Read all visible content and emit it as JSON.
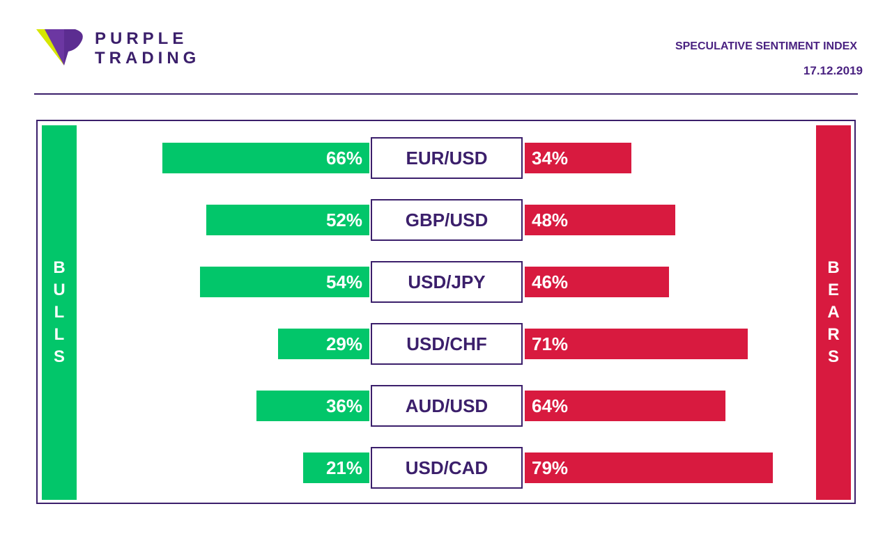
{
  "brand": {
    "line1": "PURPLE",
    "line2": "TRADING"
  },
  "header": {
    "title": "SPECULATIVE SENTIMENT INDEX",
    "date": "17.12.2019"
  },
  "colors": {
    "bulls": "#02c66a",
    "bears": "#d81a3f",
    "purple": "#3b1f6b",
    "accent_purple": "#4a2281",
    "logo_lime": "#d6e600"
  },
  "icons": {
    "logo": "purple-trading-logo-icon"
  },
  "sides": {
    "bulls": "BULLS",
    "bears": "BEARS"
  },
  "chart_data": {
    "type": "bar",
    "categories": [
      "EUR/USD",
      "GBP/USD",
      "USD/JPY",
      "USD/CHF",
      "AUD/USD",
      "USD/CAD"
    ],
    "series": [
      {
        "name": "BULLS",
        "values": [
          66,
          52,
          54,
          29,
          36,
          21
        ],
        "labels": [
          "66%",
          "52%",
          "54%",
          "29%",
          "36%",
          "21%"
        ]
      },
      {
        "name": "BEARS",
        "values": [
          34,
          48,
          46,
          71,
          64,
          79
        ],
        "labels": [
          "34%",
          "48%",
          "46%",
          "71%",
          "64%",
          "79%"
        ]
      }
    ],
    "unit": "%",
    "range": [
      0,
      100
    ]
  }
}
